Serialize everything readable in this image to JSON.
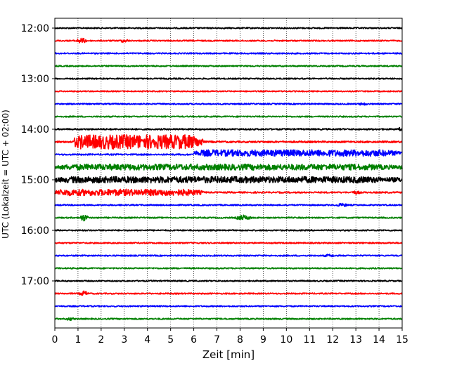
{
  "chart_data": {
    "type": "line",
    "title": "",
    "xlabel": "Zeit  [min]",
    "ylabel": "UTC (Lokalzeit = UTC + 02:00)",
    "xlim": [
      0,
      15
    ],
    "x_ticks": [
      "0",
      "1",
      "2",
      "3",
      "4",
      "5",
      "6",
      "7",
      "8",
      "9",
      "10",
      "11",
      "12",
      "13",
      "14",
      "15"
    ],
    "y_ticks": [
      {
        "label": "12:00",
        "row": 0
      },
      {
        "label": "13:00",
        "row": 4
      },
      {
        "label": "14:00",
        "row": 8
      },
      {
        "label": "15:00",
        "row": 12
      },
      {
        "label": "16:00",
        "row": 16
      },
      {
        "label": "17:00",
        "row": 20
      }
    ],
    "grid": "vertical dotted",
    "colors": [
      "#000000",
      "#ff0000",
      "#0000ff",
      "#008000"
    ],
    "rows": [
      {
        "start": "12:00",
        "color": "#000000",
        "noise": 0.22,
        "events": []
      },
      {
        "start": "12:15",
        "color": "#ff0000",
        "noise": 0.22,
        "events": [
          {
            "t": [
              0.8,
              1.5
            ],
            "amp": 0.9
          },
          {
            "t": [
              2.7,
              3.3
            ],
            "amp": 0.6
          }
        ]
      },
      {
        "start": "12:30",
        "color": "#0000ff",
        "noise": 0.22,
        "events": []
      },
      {
        "start": "12:45",
        "color": "#008000",
        "noise": 0.22,
        "events": []
      },
      {
        "start": "13:00",
        "color": "#000000",
        "noise": 0.22,
        "events": []
      },
      {
        "start": "13:15",
        "color": "#ff0000",
        "noise": 0.2,
        "events": []
      },
      {
        "start": "13:30",
        "color": "#0000ff",
        "noise": 0.22,
        "events": [
          {
            "t": [
              13.0,
              13.6
            ],
            "amp": 0.5
          }
        ]
      },
      {
        "start": "13:45",
        "color": "#008000",
        "noise": 0.22,
        "events": []
      },
      {
        "start": "14:00",
        "color": "#000000",
        "noise": 0.25,
        "events": [
          {
            "t": [
              14.8,
              15.0
            ],
            "amp": 0.6
          }
        ]
      },
      {
        "start": "14:15",
        "color": "#ff0000",
        "noise": 0.3,
        "events": [
          {
            "t": [
              0.8,
              6.4
            ],
            "amp": 2.4,
            "dense": true
          }
        ]
      },
      {
        "start": "14:30",
        "color": "#0000ff",
        "noise": 0.25,
        "events": [
          {
            "t": [
              6.0,
              15.0
            ],
            "amp": 1.1,
            "dense": true,
            "offset": 0.35
          }
        ]
      },
      {
        "start": "14:45",
        "color": "#008000",
        "noise": 0.7,
        "events": [
          {
            "t": [
              0.0,
              15.0
            ],
            "amp": 1.0,
            "dense": true
          }
        ]
      },
      {
        "start": "15:00",
        "color": "#000000",
        "noise": 0.8,
        "events": [
          {
            "t": [
              0.0,
              15.0
            ],
            "amp": 1.1,
            "dense": true
          }
        ]
      },
      {
        "start": "15:15",
        "color": "#ff0000",
        "noise": 0.25,
        "events": [
          {
            "t": [
              0.0,
              6.4
            ],
            "amp": 1.1,
            "dense": true
          },
          {
            "t": [
              12.7,
              13.3
            ],
            "amp": 0.6
          }
        ]
      },
      {
        "start": "15:30",
        "color": "#0000ff",
        "noise": 0.22,
        "events": [
          {
            "t": [
              12.0,
              12.8
            ],
            "amp": 0.6
          }
        ]
      },
      {
        "start": "15:45",
        "color": "#008000",
        "noise": 0.22,
        "events": [
          {
            "t": [
              1.0,
              1.5
            ],
            "amp": 1.2
          },
          {
            "t": [
              7.7,
              8.6
            ],
            "amp": 0.9
          }
        ]
      },
      {
        "start": "16:00",
        "color": "#000000",
        "noise": 0.22,
        "events": []
      },
      {
        "start": "16:15",
        "color": "#ff0000",
        "noise": 0.22,
        "events": [
          {
            "t": [
              14.2,
              14.8
            ],
            "amp": 0.3
          }
        ]
      },
      {
        "start": "16:30",
        "color": "#0000ff",
        "noise": 0.22,
        "events": [
          {
            "t": [
              11.5,
              12.2
            ],
            "amp": 0.5
          }
        ]
      },
      {
        "start": "16:45",
        "color": "#008000",
        "noise": 0.22,
        "events": []
      },
      {
        "start": "17:00",
        "color": "#000000",
        "noise": 0.22,
        "events": []
      },
      {
        "start": "17:15",
        "color": "#ff0000",
        "noise": 0.22,
        "events": [
          {
            "t": [
              1.0,
              1.5
            ],
            "amp": 0.9
          }
        ]
      },
      {
        "start": "17:30",
        "color": "#0000ff",
        "noise": 0.22,
        "events": []
      },
      {
        "start": "17:45",
        "color": "#008000",
        "noise": 0.22,
        "events": [
          {
            "t": [
              0.4,
              0.9
            ],
            "amp": 0.6
          }
        ]
      }
    ]
  }
}
